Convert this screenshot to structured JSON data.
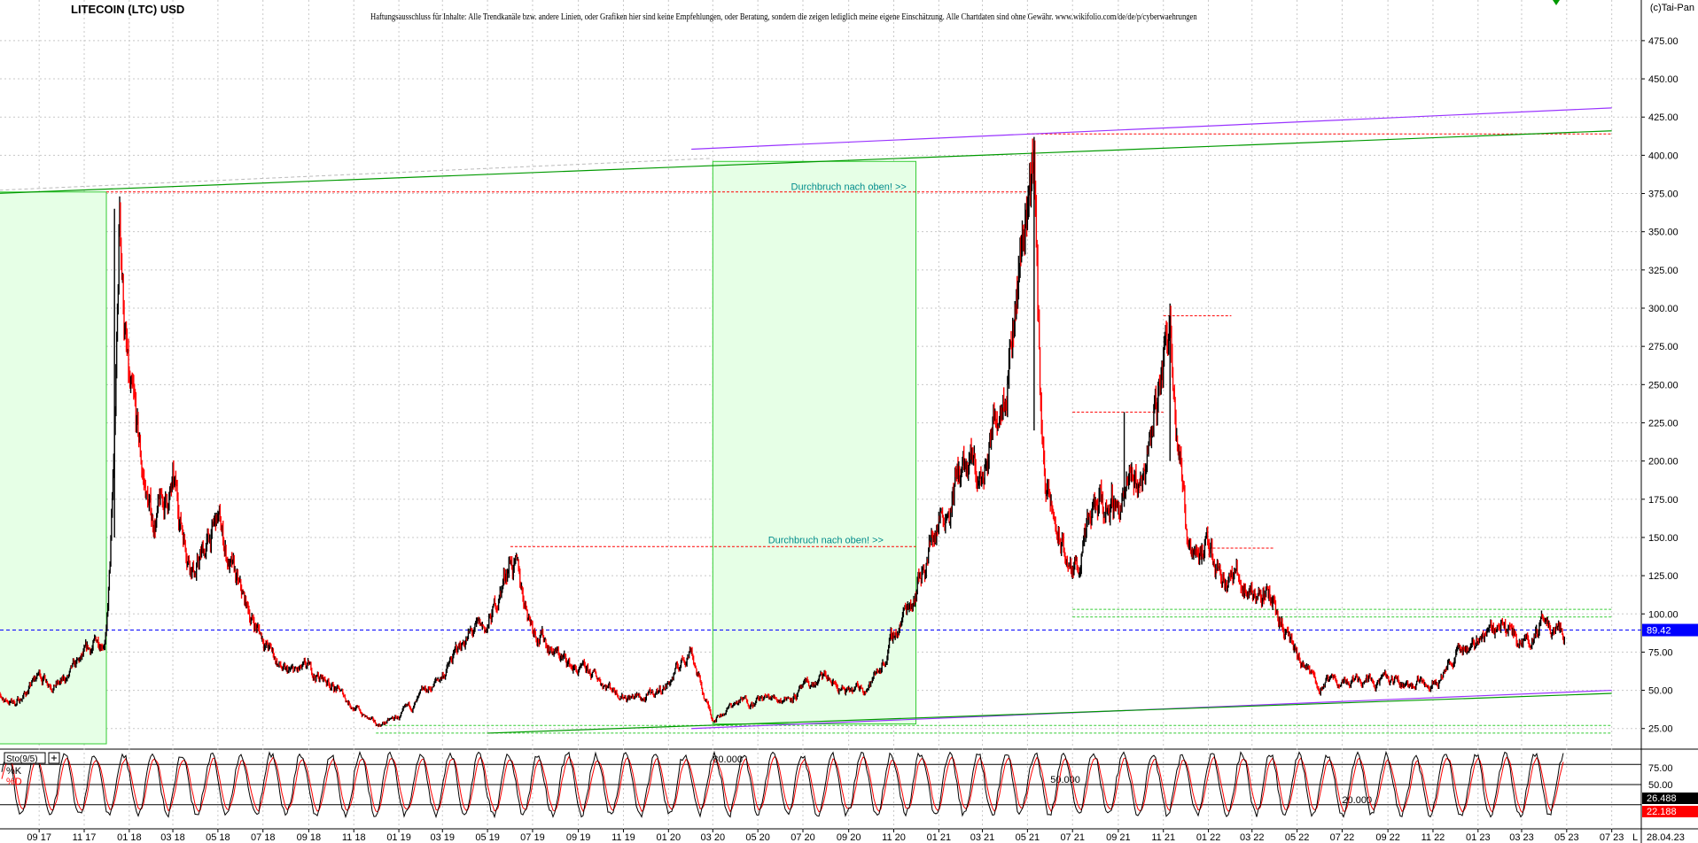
{
  "header": {
    "title": "LITECOIN (LTC) USD",
    "disclaimer": "Haftungsausschluss für Inhalte: Alle Trendkanäle bzw. andere Linien, oder Grafiken hier sind keine Empfehlungen, oder Beratung, sondern die zeigen lediglich meine eigene Einschätzung. Alle Chartdaten sind ohne Gewähr. www.wikifolio.com/de/de/p/cyberwaehrungen",
    "copyright": "(c)Tai-Pan"
  },
  "colors": {
    "price_up": "#000000",
    "price_down": "#ff0000",
    "trend_purple": "#9933ff",
    "trend_green": "#009900",
    "box_fill": "#e6ffe6",
    "box_border": "#33cc33",
    "current_price_line": "#0000ff",
    "resistance_dashed": "#ff0000",
    "annotation_text": "#008b8b",
    "grid": "#c8c8c8"
  },
  "chart_data": [
    {
      "type": "line",
      "name": "price",
      "title": "LITECOIN (LTC) USD",
      "y_axis": {
        "ticks": [
          "475.00",
          "450.00",
          "425.00",
          "400.00",
          "375.00",
          "350.00",
          "325.00",
          "300.00",
          "275.00",
          "250.00",
          "225.00",
          "200.00",
          "175.00",
          "150.00",
          "125.00",
          "100.00",
          "75.00",
          "50.00",
          "25.00"
        ],
        "ylim": [
          15,
          490
        ]
      },
      "x_axis": {
        "ticks": [
          "09 17",
          "11 17",
          "01 18",
          "03 18",
          "05 18",
          "07 18",
          "09 18",
          "11 18",
          "01 19",
          "03 19",
          "05 19",
          "07 19",
          "09 19",
          "11 19",
          "01 20",
          "03 20",
          "05 20",
          "07 20",
          "09 20",
          "11 20",
          "01 21",
          "03 21",
          "05 21",
          "07 21",
          "09 21",
          "11 21",
          "01 22",
          "03 22",
          "05 22",
          "07 22",
          "09 22",
          "11 22",
          "01 23",
          "03 23",
          "05 23",
          "07 23"
        ],
        "last_date": "28.04.23",
        "end_marker": "L"
      },
      "current_price": "89.42",
      "series_points": [
        [
          "2017-07",
          45
        ],
        [
          "2017-08",
          42
        ],
        [
          "2017-09",
          60
        ],
        [
          "2017-10",
          54
        ],
        [
          "2017-11",
          70
        ],
        [
          "2017-12",
          90
        ],
        [
          "2017-12-19",
          360
        ],
        [
          "2018-01",
          240
        ],
        [
          "2018-02",
          160
        ],
        [
          "2018-03",
          180
        ],
        [
          "2018-04",
          130
        ],
        [
          "2018-05",
          160
        ],
        [
          "2018-06",
          110
        ],
        [
          "2018-07",
          85
        ],
        [
          "2018-08",
          60
        ],
        [
          "2018-09",
          62
        ],
        [
          "2018-10",
          55
        ],
        [
          "2018-11",
          40
        ],
        [
          "2018-12",
          27
        ],
        [
          "2019-01",
          32
        ],
        [
          "2019-02",
          45
        ],
        [
          "2019-03",
          60
        ],
        [
          "2019-04",
          85
        ],
        [
          "2019-05",
          90
        ],
        [
          "2019-06",
          140
        ],
        [
          "2019-07",
          95
        ],
        [
          "2019-08",
          75
        ],
        [
          "2019-09",
          62
        ],
        [
          "2019-10",
          57
        ],
        [
          "2019-11",
          48
        ],
        [
          "2019-12",
          44
        ],
        [
          "2020-01",
          55
        ],
        [
          "2020-02",
          80
        ],
        [
          "2020-03",
          32
        ],
        [
          "2020-04",
          42
        ],
        [
          "2020-05",
          44
        ],
        [
          "2020-06",
          45
        ],
        [
          "2020-07",
          50
        ],
        [
          "2020-08",
          58
        ],
        [
          "2020-09",
          47
        ],
        [
          "2020-10",
          55
        ],
        [
          "2020-11",
          85
        ],
        [
          "2020-12",
          120
        ],
        [
          "2021-01",
          165
        ],
        [
          "2021-02",
          195
        ],
        [
          "2021-03",
          185
        ],
        [
          "2021-04",
          270
        ],
        [
          "2021-05-10",
          412
        ],
        [
          "2021-05-20",
          220
        ],
        [
          "2021-06",
          165
        ],
        [
          "2021-07",
          125
        ],
        [
          "2021-08",
          165
        ],
        [
          "2021-09",
          175
        ],
        [
          "2021-10",
          185
        ],
        [
          "2021-11-10",
          295
        ],
        [
          "2021-11-25",
          210
        ],
        [
          "2021-12",
          155
        ],
        [
          "2022-01",
          140
        ],
        [
          "2022-02",
          125
        ],
        [
          "2022-03",
          115
        ],
        [
          "2022-04",
          110
        ],
        [
          "2022-05",
          70
        ],
        [
          "2022-06",
          53
        ],
        [
          "2022-07",
          56
        ],
        [
          "2022-08",
          60
        ],
        [
          "2022-09",
          56
        ],
        [
          "2022-10",
          54
        ],
        [
          "2022-11",
          58
        ],
        [
          "2022-12",
          72
        ],
        [
          "2023-01",
          85
        ],
        [
          "2023-02",
          95
        ],
        [
          "2023-03",
          82
        ],
        [
          "2023-04",
          95
        ],
        [
          "2023-04-28",
          89.42
        ]
      ],
      "trendlines": [
        {
          "name": "upper purple trendline",
          "color": "purple",
          "from": [
            "2020-02",
            404
          ],
          "to": [
            "2023-07",
            431
          ]
        },
        {
          "name": "upper green trendline",
          "color": "green",
          "from": [
            "2017-07",
            375
          ],
          "to": [
            "2023-07",
            416
          ]
        },
        {
          "name": "lower purple trendline",
          "color": "purple",
          "from": [
            "2020-02",
            25
          ],
          "to": [
            "2023-07",
            50
          ]
        },
        {
          "name": "lower green trendline",
          "color": "green",
          "from": [
            "2019-05",
            22
          ],
          "to": [
            "2023-07",
            48
          ]
        }
      ],
      "horizontal_levels": [
        {
          "name": "resistance 2017 peak",
          "value": 376,
          "from": "2017-12",
          "to": "2021-05"
        },
        {
          "name": "resistance 2019 peak",
          "value": 144,
          "from": "2019-06",
          "to": "2020-12"
        },
        {
          "name": "resistance 2021 peak",
          "value": 414,
          "from": "2021-05",
          "to": "2023-07"
        },
        {
          "name": "resistance 2021-09",
          "value": 232,
          "from": "2021-07",
          "to": "2021-11"
        },
        {
          "name": "resistance 2021-11",
          "value": 295,
          "from": "2021-11",
          "to": "2022-02"
        },
        {
          "name": "level 2022-03",
          "value": 143,
          "from": "2022-01",
          "to": "2022-04"
        },
        {
          "name": "support green 1",
          "value": 103,
          "from": "2021-07",
          "to": "2023-07"
        },
        {
          "name": "support green 2",
          "value": 98,
          "from": "2021-07",
          "to": "2023-07"
        },
        {
          "name": "support green 3",
          "value": 27,
          "from": "2018-12",
          "to": "2023-07"
        },
        {
          "name": "support green 4",
          "value": 22,
          "from": "2018-12",
          "to": "2023-07"
        }
      ],
      "boxes": [
        {
          "name": "breakout box 2017",
          "from": "2017-07",
          "to": "2017-12",
          "low": 15,
          "high": 376
        },
        {
          "name": "breakout box 2020",
          "from": "2020-03",
          "to": "2020-12",
          "low": 28,
          "high": 396
        }
      ],
      "annotations": [
        {
          "text": "Durchbruch nach oben! >>",
          "x": "2020-09",
          "y": 375
        },
        {
          "text": "Durchbruch nach oben! >>",
          "x": "2020-08",
          "y": 144
        }
      ]
    },
    {
      "type": "line",
      "name": "stochastic",
      "indicator_label": "Sto(9/5)",
      "series": [
        {
          "name": "%K",
          "color": "#000000"
        },
        {
          "name": "%D",
          "color": "#ff0000"
        }
      ],
      "ylim": [
        0,
        100
      ],
      "y_axis_ticks": [
        "75.00",
        "50.00"
      ],
      "level_labels": [
        "80.000",
        "50.000",
        "20.000"
      ],
      "current_values": {
        "k": "26.488",
        "d": "22.188"
      }
    }
  ]
}
